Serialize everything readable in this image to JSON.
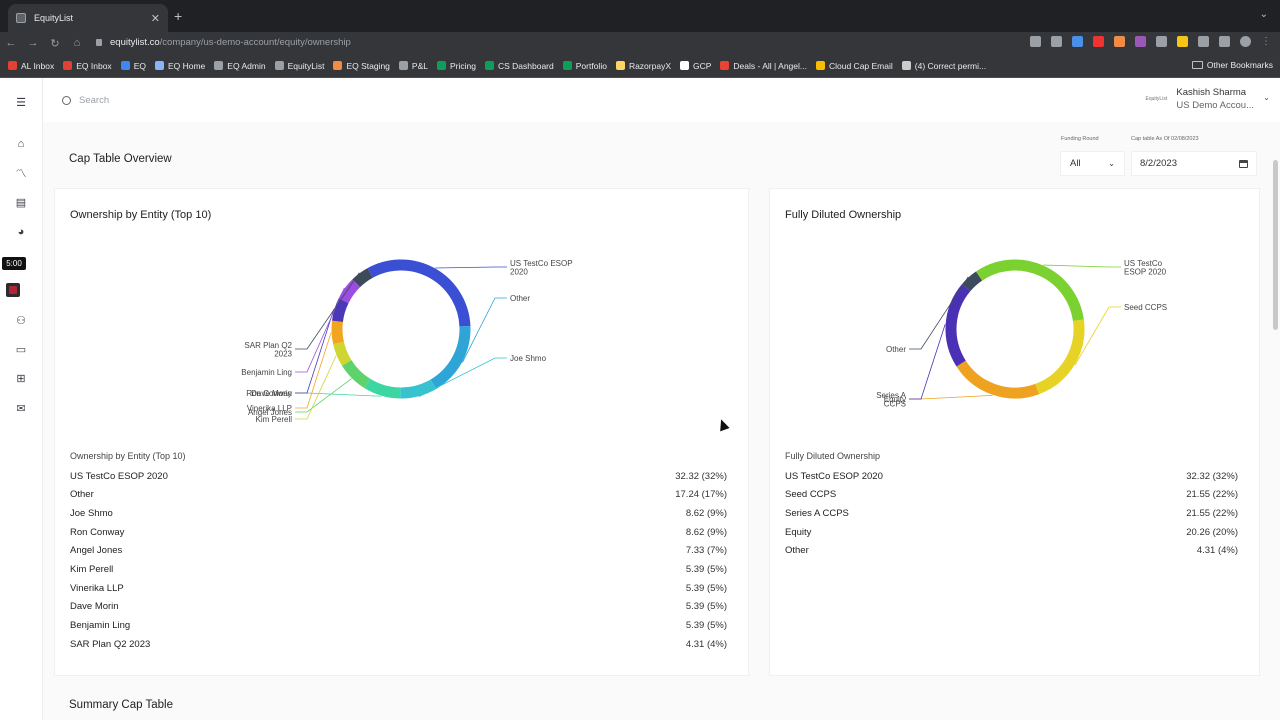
{
  "browser": {
    "tab_title": "EquityList",
    "url_host": "equitylist.co",
    "url_path": "/company/us-demo-account/equity/ownership",
    "bookmarks": [
      "AL Inbox",
      "EQ Inbox",
      "EQ",
      "EQ Home",
      "EQ Admin",
      "EquityList",
      "EQ Staging",
      "P&L",
      "Pricing",
      "CS Dashboard",
      "Portfolio",
      "RazorpayX",
      "GCP",
      "Deals - All | Angel...",
      "Cloud Cap Email",
      "(4) Correct permi..."
    ],
    "bookmark_colors": [
      "#e34133",
      "#e34133",
      "#4285f4",
      "#8ab4f8",
      "#9aa0a6",
      "#9aa0a6",
      "#f28b44",
      "#9aa0a6",
      "#0f9d58",
      "#0f9d58",
      "#0f9d58",
      "#fdd663",
      "#ffffff",
      "#ea4335",
      "#fbbc04",
      "#cccccc"
    ],
    "other_bookmarks": "Other Bookmarks"
  },
  "sidebar": {
    "timer": "5:00"
  },
  "topbar": {
    "search_placeholder": "Search",
    "logo_text": "EquityList",
    "user_name": "Kashish Sharma",
    "user_org": "US Demo Accou..."
  },
  "page": {
    "title": "Cap Table Overview",
    "funding_round_label": "Funding Round",
    "funding_round_value": "All",
    "cap_table_as_of_label": "Cap table As Of 02/08/2023",
    "cap_table_date": "8/2/2023",
    "summary_title": "Summary Cap Table"
  },
  "ownership": {
    "title": "Ownership by Entity (Top 10)",
    "caption": "Ownership by Entity (Top 10)",
    "rows": [
      {
        "name": "US TestCo ESOP 2020",
        "value": "32.32 (32%)"
      },
      {
        "name": "Other",
        "value": "17.24 (17%)"
      },
      {
        "name": "Joe Shmo",
        "value": "8.62 (9%)"
      },
      {
        "name": "Ron Conway",
        "value": "8.62 (9%)"
      },
      {
        "name": "Angel Jones",
        "value": "7.33 (7%)"
      },
      {
        "name": "Kim Perell",
        "value": "5.39 (5%)"
      },
      {
        "name": "Vinerika LLP",
        "value": "5.39 (5%)"
      },
      {
        "name": "Dave Morin",
        "value": "5.39 (5%)"
      },
      {
        "name": "Benjamin Ling",
        "value": "5.39 (5%)"
      },
      {
        "name": "SAR Plan Q2 2023",
        "value": "4.31 (4%)"
      }
    ],
    "chart_data": {
      "type": "pie",
      "values": [
        32.32,
        17.24,
        8.62,
        8.62,
        7.33,
        5.39,
        5.39,
        5.39,
        5.39,
        4.31
      ],
      "colors": [
        "#3a4fd4",
        "#2ea5d6",
        "#36c2cf",
        "#3cd6a2",
        "#5fd36b",
        "#cfd631",
        "#f2a521",
        "#4a38b8",
        "#9b4de0",
        "#3d4a5c"
      ],
      "labels": [
        "US TestCo ESOP\n2020",
        "Other",
        "Joe Shmo",
        "Ron Conway",
        "Angel Jones",
        "Kim Perell",
        "Vinerika LLP",
        "Dave Morin",
        "Benjamin Ling",
        "SAR Plan Q2\n2023"
      ]
    }
  },
  "fully_diluted": {
    "title": "Fully Diluted Ownership",
    "caption": "Fully Diluted Ownership",
    "rows": [
      {
        "name": "US TestCo ESOP 2020",
        "value": "32.32 (32%)"
      },
      {
        "name": "Seed CCPS",
        "value": "21.55 (22%)"
      },
      {
        "name": "Series A CCPS",
        "value": "21.55 (22%)"
      },
      {
        "name": "Equity",
        "value": "20.26 (20%)"
      },
      {
        "name": "Other",
        "value": "4.31 (4%)"
      }
    ],
    "chart_data": {
      "type": "pie",
      "values": [
        32.32,
        21.55,
        21.55,
        20.26,
        4.31
      ],
      "colors": [
        "#7ad12f",
        "#e6d326",
        "#eea21f",
        "#4a30b5",
        "#3d4a5c"
      ],
      "labels": [
        "US TestCo\nESOP 2020",
        "Seed CCPS",
        "Series A\nCCPS",
        "Equity",
        "Other"
      ]
    }
  }
}
